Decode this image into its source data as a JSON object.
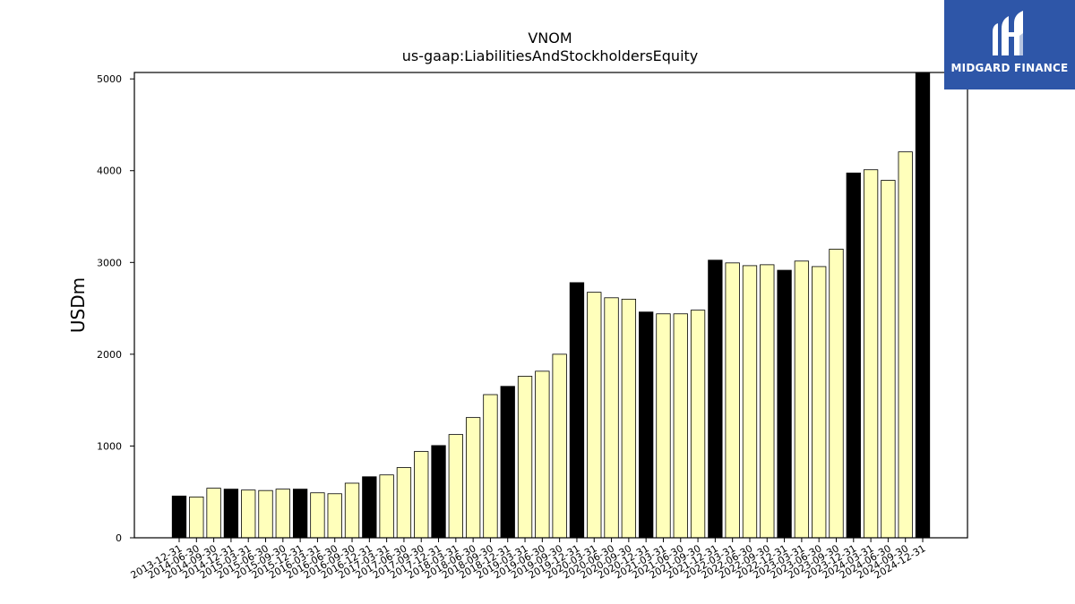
{
  "logo": {
    "text": "MIDGARD FINANCE",
    "bg_color": "#2e56a8",
    "icon": "midgard-logo-icon"
  },
  "chart_data": {
    "type": "bar",
    "title": "VNOM",
    "subtitle": "us-gaap:LiabilitiesAndStockholdersEquity",
    "xlabel": "",
    "ylabel": "USDm",
    "ylim": [
      0,
      5070
    ],
    "yticks": [
      0,
      1000,
      2000,
      3000,
      4000,
      5000
    ],
    "grid": false,
    "legend": "none",
    "colors": {
      "annual": "#000000",
      "quarterly": "#ffffbb",
      "edge": "#000000"
    },
    "categories": [
      "2013-12-31",
      "2014-06-30",
      "2014-09-30",
      "2014-12-31",
      "2015-03-31",
      "2015-06-30",
      "2015-09-30",
      "2015-12-31",
      "2016-03-31",
      "2016-06-30",
      "2016-09-30",
      "2016-12-31",
      "2017-03-31",
      "2017-06-30",
      "2017-09-30",
      "2017-12-31",
      "2018-03-31",
      "2018-06-30",
      "2018-09-30",
      "2018-12-31",
      "2019-03-31",
      "2019-06-30",
      "2019-09-30",
      "2019-12-31",
      "2020-03-31",
      "2020-06-30",
      "2020-09-30",
      "2020-12-31",
      "2021-03-31",
      "2021-06-30",
      "2021-09-30",
      "2021-12-31",
      "2022-03-31",
      "2022-06-30",
      "2022-09-30",
      "2022-12-31",
      "2023-03-31",
      "2023-06-30",
      "2023-09-30",
      "2023-12-31",
      "2024-03-31",
      "2024-06-30",
      "2024-09-30",
      "2024-12-31"
    ],
    "values": [
      455,
      445,
      540,
      530,
      520,
      515,
      530,
      530,
      490,
      480,
      595,
      665,
      685,
      765,
      940,
      1005,
      1125,
      1310,
      1560,
      1650,
      1760,
      1815,
      2000,
      2780,
      2675,
      2615,
      2600,
      2460,
      2440,
      2440,
      2480,
      3025,
      2995,
      2965,
      2975,
      2915,
      3015,
      2955,
      3145,
      3975,
      4010,
      3895,
      4205,
      5070
    ],
    "annual": [
      true,
      false,
      false,
      true,
      false,
      false,
      false,
      true,
      false,
      false,
      false,
      true,
      false,
      false,
      false,
      true,
      false,
      false,
      false,
      true,
      false,
      false,
      false,
      true,
      false,
      false,
      false,
      true,
      false,
      false,
      false,
      true,
      false,
      false,
      false,
      true,
      false,
      false,
      false,
      true,
      false,
      false,
      false,
      true
    ]
  }
}
